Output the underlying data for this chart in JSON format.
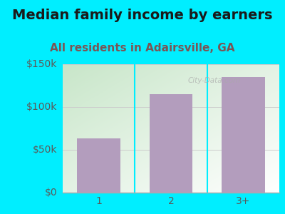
{
  "title": "Median family income by earners",
  "subtitle": "All residents in Adairsville, GA",
  "categories": [
    "1",
    "2",
    "3+"
  ],
  "values": [
    63000,
    115000,
    135000
  ],
  "bar_color": "#b39dbd",
  "background_outer": "#00eeff",
  "background_inner_topleft": "#c8e6c9",
  "background_inner_bottomright": "#ffffff",
  "ylim": [
    0,
    150000
  ],
  "yticks": [
    0,
    50000,
    100000,
    150000
  ],
  "ytick_labels": [
    "$0",
    "$50k",
    "$100k",
    "$150k"
  ],
  "title_fontsize": 14,
  "subtitle_fontsize": 11,
  "tick_fontsize": 10,
  "title_color": "#1a1a1a",
  "subtitle_color": "#7a5555",
  "tick_color": "#5a5a5a",
  "watermark": "City-Data.com",
  "divider_color": "#00eeff",
  "grid_color": "#cccccc"
}
